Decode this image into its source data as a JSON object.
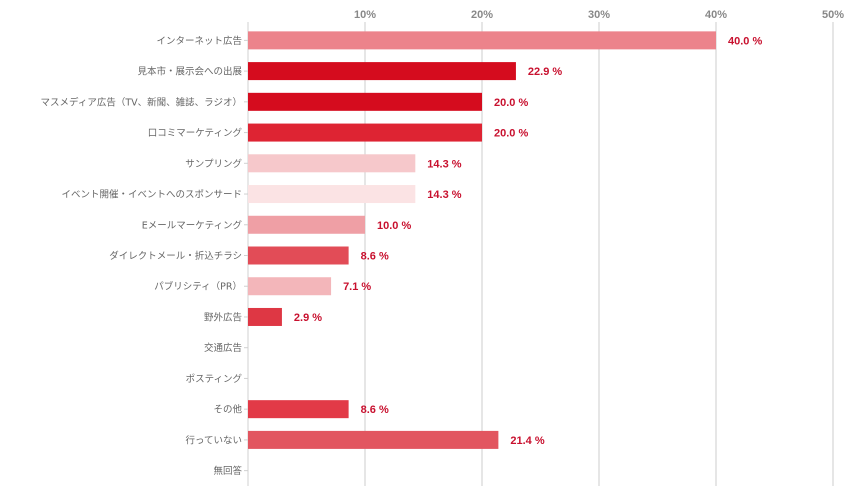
{
  "chart_data": {
    "type": "bar",
    "orientation": "horizontal",
    "categories": [
      "インターネット広告",
      "見本市・展示会への出展",
      "マスメディア広告（TV、新聞、雑誌、ラジオ）",
      "口コミマーケティング",
      "サンプリング",
      "イベント開催・イベントへのスポンサード",
      "Eメールマーケティング",
      "ダイレクトメール・折込チラシ",
      "パブリシティ（PR）",
      "野外広告",
      "交通広告",
      "ポスティング",
      "その他",
      "行っていない",
      "無回答"
    ],
    "values": [
      40.0,
      22.9,
      20.0,
      20.0,
      14.3,
      14.3,
      10.0,
      8.6,
      7.1,
      2.9,
      0,
      0,
      8.6,
      21.4,
      0
    ],
    "value_labels": [
      "40.0 %",
      "22.9 %",
      "20.0 %",
      "20.0 %",
      "14.3 %",
      "14.3 %",
      "10.0 %",
      "8.6 %",
      "7.1 %",
      "2.9 %",
      "",
      "",
      "8.6 %",
      "21.4 %",
      ""
    ],
    "colors": [
      "#ec838b",
      "#d50c1e",
      "#d50c1e",
      "#de2433",
      "#f6c8cb",
      "#fbe3e4",
      "#ef9fa5",
      "#e24c57",
      "#f3b6ba",
      "#de3744",
      "#ffffff",
      "#ffffff",
      "#e23a47",
      "#e25660",
      "#ffffff"
    ],
    "xticks": [
      "10%",
      "20%",
      "30%",
      "40%",
      "50%"
    ],
    "xlim": [
      0,
      50
    ],
    "title": "",
    "xlabel": "",
    "ylabel": "",
    "grid": "vertical"
  }
}
